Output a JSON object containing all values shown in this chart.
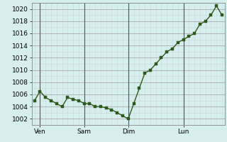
{
  "x": [
    0,
    1,
    2,
    3,
    4,
    5,
    6,
    7,
    8,
    9,
    10,
    11,
    12,
    13,
    14,
    15,
    16,
    17,
    18,
    19,
    20,
    21,
    22,
    23,
    24,
    25,
    26,
    27,
    28,
    29,
    30,
    31,
    32,
    33,
    34
  ],
  "y": [
    1005,
    1006.5,
    1005.5,
    1005,
    1004.5,
    1004,
    1005.5,
    1005.2,
    1005,
    1004.5,
    1004.5,
    1004,
    1004,
    1003.8,
    1003.5,
    1003,
    1002.5,
    1002,
    1004.5,
    1007,
    1009.5,
    1010,
    1011,
    1012,
    1013,
    1013.5,
    1014.5,
    1015,
    1015.5,
    1016,
    1017.5,
    1018,
    1019,
    1020.5,
    1019
  ],
  "line_color": "#2d5a1b",
  "marker_color": "#2d5a1b",
  "bg_color": "#d6eeee",
  "grid_color_major": "#aaaaaa",
  "grid_color_minor": "#c8dcd8",
  "ylim": [
    1001,
    1021
  ],
  "yticks": [
    1002,
    1004,
    1006,
    1008,
    1010,
    1012,
    1014,
    1016,
    1018,
    1020
  ],
  "xtick_labels": [
    "Ven",
    "Sam",
    "Dim",
    "Lun"
  ],
  "xtick_positions": [
    1,
    9,
    17,
    27
  ],
  "vline_positions": [
    1,
    9,
    17,
    27
  ],
  "tick_fontsize": 6.5,
  "line_width": 1.0,
  "marker_size": 2.5
}
